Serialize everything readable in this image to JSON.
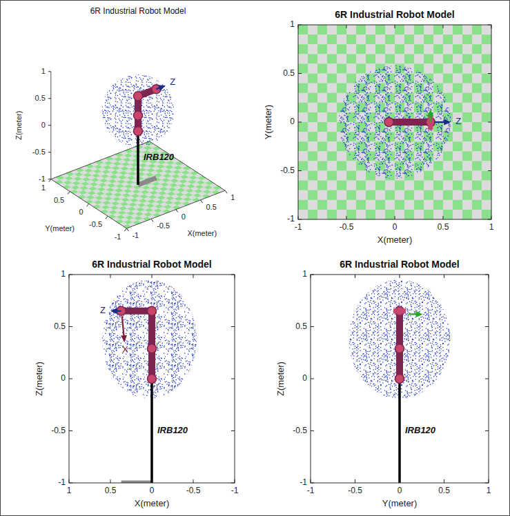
{
  "chart_data": [
    {
      "type": "3d",
      "title": "6R Industrial Robot Model",
      "x_label": "X(meter)",
      "y_label": "Y(meter)",
      "z_label": "Z(meter)",
      "xlim": [
        -1,
        1
      ],
      "ylim": [
        -1,
        1
      ],
      "zlim": [
        -1,
        1
      ],
      "xticks": [
        -1,
        -0.5,
        0,
        0.5,
        1
      ],
      "yticks": [
        -1,
        -0.5,
        0,
        0.5,
        1
      ],
      "zticks": [
        -1,
        -0.5,
        0,
        0.5,
        1
      ],
      "workspace": {
        "center": [
          0,
          0,
          0.38
        ],
        "radius": 0.58,
        "color": "#1c33c8"
      },
      "series": [
        {
          "type": "line",
          "color": "#8a8a8a",
          "line_style": "thick",
          "x": [
            0,
            0.37
          ],
          "y": [
            0,
            0
          ],
          "z": [
            -1,
            -1
          ]
        },
        {
          "type": "line",
          "color": "#000000",
          "x": [
            0,
            0
          ],
          "y": [
            0,
            0
          ],
          "z": [
            -1,
            0
          ],
          "label": "IRB120"
        },
        {
          "type": "line",
          "color": "#7d2450",
          "marker": "joint",
          "x": [
            0,
            0,
            0,
            0.37
          ],
          "y": [
            0,
            0,
            0,
            0
          ],
          "z": [
            0,
            0.29,
            0.65,
            0.65
          ]
        },
        {
          "type": "arrow",
          "color": "#1a2a80",
          "x": [
            0.37,
            0.56
          ],
          "y": [
            0,
            0
          ],
          "z": [
            0.65,
            0.65
          ],
          "label": "Z"
        }
      ]
    },
    {
      "type": "top",
      "title": "6R Industrial Robot Model",
      "x_label": "X(meter)",
      "y_label": "Y(meter)",
      "xlim": [
        -1,
        1
      ],
      "ylim": [
        -1,
        1
      ],
      "xticks": [
        -1,
        -0.5,
        0,
        0.5,
        1
      ],
      "yticks": [
        -1,
        -0.5,
        0,
        0.5,
        1
      ],
      "workspace": {
        "center": [
          0,
          0
        ],
        "radius": 0.58,
        "color": "#1c33c8"
      },
      "series": [
        {
          "type": "line",
          "color": "#7d2450",
          "marker": "joint",
          "x": [
            -0.06,
            0.37
          ],
          "values": [
            0,
            0
          ]
        },
        {
          "type": "line",
          "color": "#c8466a",
          "line_style": "thick",
          "x": [
            0.37,
            0.37
          ],
          "values": [
            -0.08,
            0.08
          ]
        },
        {
          "type": "arrow",
          "color": "#22aa22",
          "x": [
            0.37,
            0.37
          ],
          "values": [
            0,
            0.13
          ]
        },
        {
          "type": "arrow",
          "color": "#1a2a80",
          "x": [
            0.41,
            0.58
          ],
          "values": [
            0,
            0
          ],
          "label": "Z"
        }
      ]
    },
    {
      "type": "side",
      "title": "6R Industrial Robot Model",
      "x_label": "X(meter)",
      "y_label": "Z(meter)",
      "xlim": [
        1,
        -1
      ],
      "ylim": [
        -1,
        1
      ],
      "xticks": [
        1,
        0.5,
        0,
        -0.5,
        -1
      ],
      "yticks": [
        -1,
        -0.5,
        0,
        0.5,
        1
      ],
      "workspace": {
        "center": [
          0.03,
          0.38
        ],
        "radius": 0.57,
        "color": "#1c33c8"
      },
      "series": [
        {
          "type": "line",
          "color": "#8a8a8a",
          "line_style": "thick",
          "x": [
            0,
            0.37
          ],
          "values": [
            -1,
            -1
          ]
        },
        {
          "type": "line",
          "color": "#000000",
          "x": [
            0,
            0
          ],
          "values": [
            -1,
            0
          ],
          "label": "IRB120"
        },
        {
          "type": "line",
          "color": "#7d2450",
          "marker": "joint",
          "x": [
            0,
            0,
            0,
            0.37
          ],
          "values": [
            0,
            0.29,
            0.65,
            0.65
          ]
        },
        {
          "type": "arrow",
          "color": "#1a2a80",
          "x": [
            0.37,
            0.5
          ],
          "values": [
            0.65,
            0.65
          ],
          "label": "Z"
        },
        {
          "type": "arrow",
          "color": "#7b1f3a",
          "x": [
            0.36,
            0.33
          ],
          "values": [
            0.6,
            0.35
          ],
          "label": "X"
        }
      ]
    },
    {
      "type": "side",
      "title": "6R Industrial Robot Model",
      "x_label": "Y(meter)",
      "y_label": "Z(meter)",
      "xlim": [
        -1,
        1
      ],
      "ylim": [
        -1,
        1
      ],
      "xticks": [
        -1,
        -0.5,
        0,
        0.5,
        1
      ],
      "yticks": [
        -1,
        -0.5,
        0,
        0.5,
        1
      ],
      "workspace": {
        "center": [
          0,
          0.38
        ],
        "radius": 0.57,
        "color": "#1c33c8"
      },
      "series": [
        {
          "type": "line",
          "color": "#000000",
          "x": [
            0,
            0
          ],
          "values": [
            -1,
            0
          ],
          "label": "IRB120"
        },
        {
          "type": "line",
          "color": "#7d2450",
          "marker": "joint",
          "x": [
            0,
            0,
            0
          ],
          "values": [
            0,
            0.29,
            0.65
          ]
        },
        {
          "type": "line",
          "color": "#c8466a",
          "line_style": "thick",
          "x": [
            -0.07,
            0.07
          ],
          "values": [
            0.65,
            0.65
          ]
        },
        {
          "type": "arrow",
          "color": "#22aa22",
          "x": [
            0.1,
            0.26
          ],
          "values": [
            0.62,
            0.62
          ]
        }
      ]
    }
  ]
}
